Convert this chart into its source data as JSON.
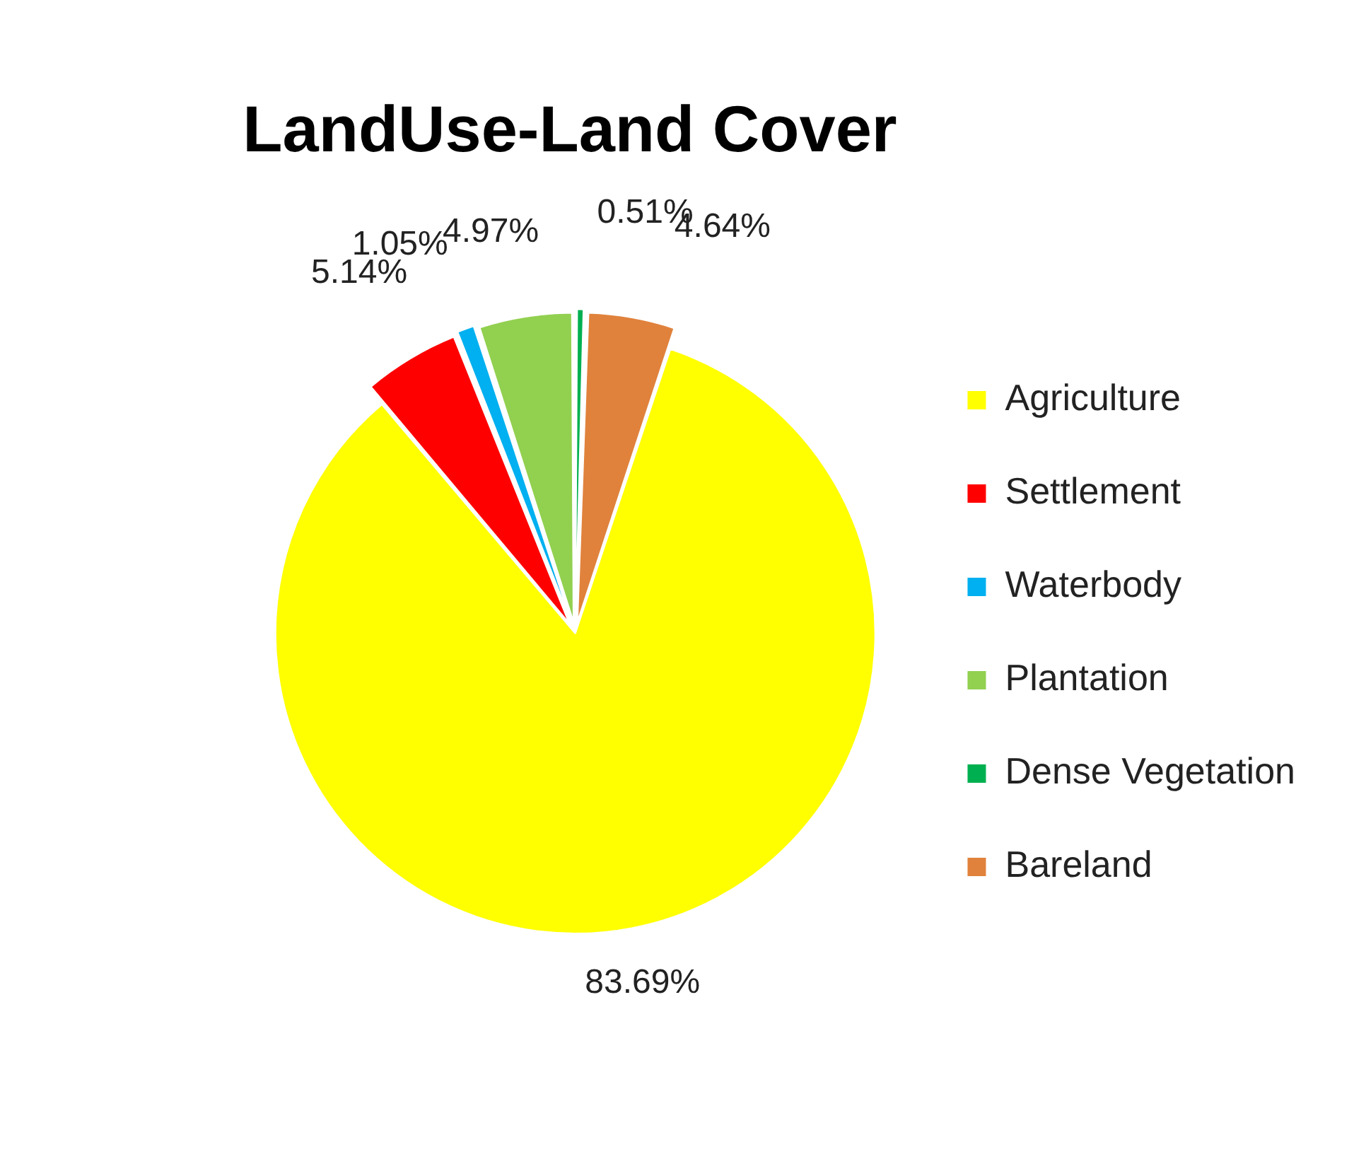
{
  "chart_data": {
    "type": "pie",
    "title": "LandUse-Land Cover",
    "categories": [
      "Agriculture",
      "Settlement",
      "Waterbody",
      "Plantation",
      "Dense Vegetation",
      "Bareland"
    ],
    "values": [
      83.69,
      5.14,
      1.05,
      4.97,
      0.51,
      4.64
    ],
    "colors": [
      "#ffff00",
      "#ff0000",
      "#00b0f0",
      "#92d050",
      "#00b050",
      "#e0823c"
    ],
    "value_labels": [
      "83.69%",
      "5.14%",
      "1.05%",
      "4.97%",
      "0.51%",
      "4.64%"
    ],
    "legend": "right"
  }
}
